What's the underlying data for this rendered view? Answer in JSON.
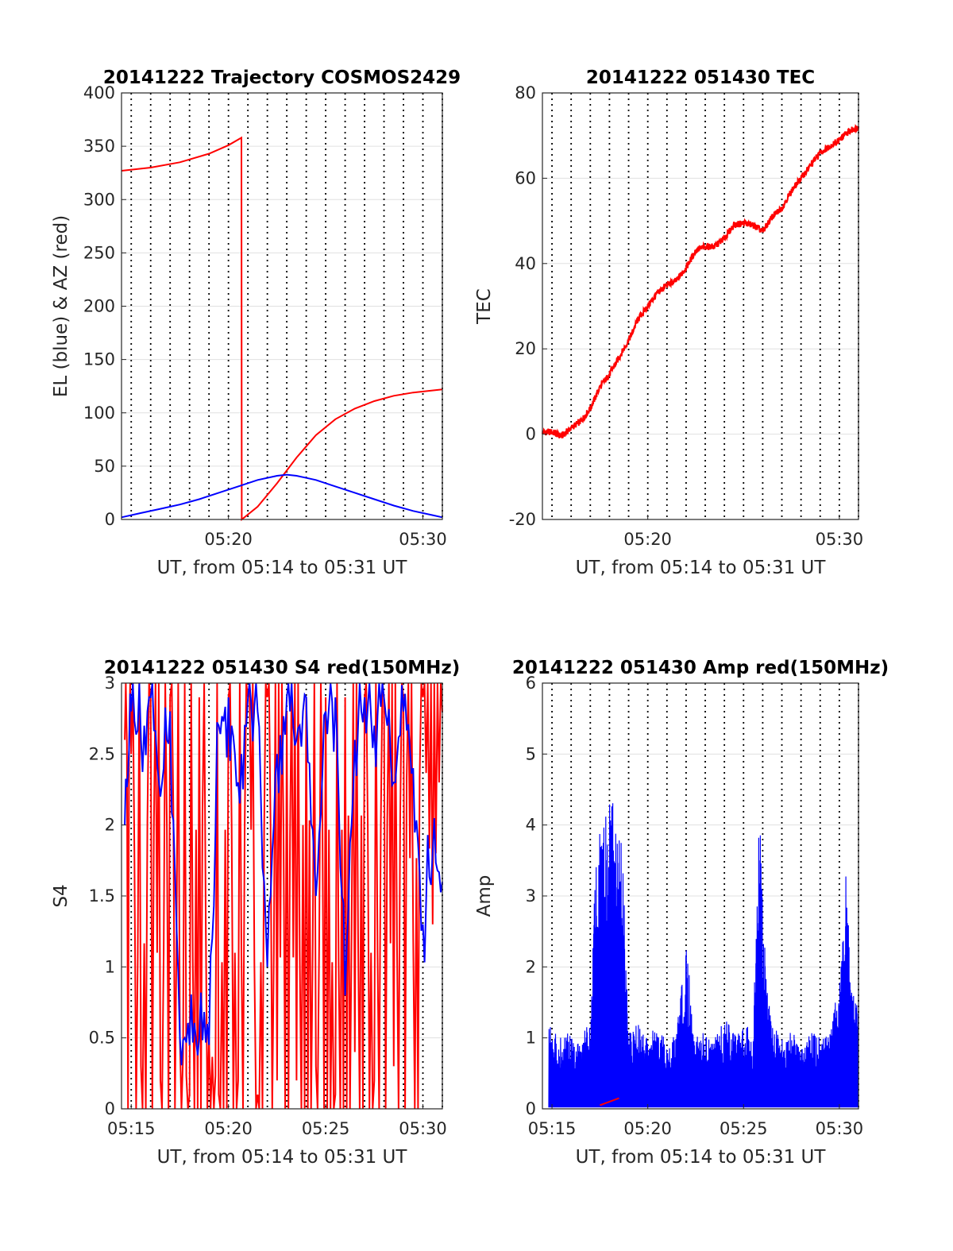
{
  "chart_data": [
    {
      "id": "trajectory",
      "type": "line",
      "title": "20141222 Trajectory COSMOS2429",
      "xlabel": "UT, from 05:14 to 05:31 UT",
      "ylabel": "EL (blue) & AZ (red)",
      "xlim": [
        "05:14:30",
        "05:31:00"
      ],
      "ylim": [
        0,
        400
      ],
      "yticks": [
        0,
        50,
        100,
        150,
        200,
        250,
        300,
        350,
        400
      ],
      "xticks": [
        "05:20",
        "05:30"
      ],
      "grid": "x dotted per minute, y solid",
      "series": [
        {
          "color": "#ff0000",
          "x": [
            "05:14:30",
            "05:16:00",
            "05:17:30",
            "05:19:00",
            "05:20:00",
            "05:20:40",
            "05:20:41",
            "05:21:30",
            "05:22:30",
            "05:23:30",
            "05:24:30",
            "05:25:30",
            "05:26:30",
            "05:27:30",
            "05:28:30",
            "05:29:30",
            "05:31:00"
          ],
          "y": [
            327,
            330,
            335,
            343,
            351,
            358,
            0,
            12,
            34,
            58,
            79,
            94,
            104,
            111,
            116,
            119,
            122
          ]
        },
        {
          "color": "#0000ff",
          "x": [
            "05:14:30",
            "05:15:30",
            "05:16:30",
            "05:17:30",
            "05:18:30",
            "05:19:30",
            "05:20:30",
            "05:21:30",
            "05:22:30",
            "05:23:00",
            "05:23:30",
            "05:24:30",
            "05:25:30",
            "05:26:30",
            "05:27:30",
            "05:28:30",
            "05:29:30",
            "05:30:30",
            "05:31:00"
          ],
          "y": [
            2,
            6,
            10,
            14,
            19,
            25,
            31,
            37,
            41,
            42,
            41,
            37,
            31,
            25,
            19,
            13,
            8,
            4,
            2
          ]
        }
      ]
    },
    {
      "id": "tec",
      "type": "line",
      "title": "20141222 051430 TEC",
      "xlabel": "UT, from 05:14 to 05:31 UT",
      "ylabel": "TEC",
      "xlim": [
        "05:14:30",
        "05:31:00"
      ],
      "ylim": [
        -20,
        80
      ],
      "yticks": [
        -20,
        0,
        20,
        40,
        60,
        80
      ],
      "xticks": [
        "05:20",
        "05:30"
      ],
      "series": [
        {
          "color": "#ff0000",
          "x": [
            "05:14:30",
            "05:15:00",
            "05:15:30",
            "05:16:00",
            "05:16:30",
            "05:17:00",
            "05:17:30",
            "05:18:00",
            "05:18:30",
            "05:19:00",
            "05:19:30",
            "05:20:00",
            "05:20:30",
            "05:21:00",
            "05:21:30",
            "05:22:00",
            "05:22:30",
            "05:23:00",
            "05:23:30",
            "05:24:00",
            "05:24:30",
            "05:25:00",
            "05:25:30",
            "05:26:00",
            "05:26:30",
            "05:27:00",
            "05:27:30",
            "05:28:00",
            "05:28:30",
            "05:29:00",
            "05:29:30",
            "05:30:00",
            "05:30:30",
            "05:31:00"
          ],
          "y": [
            0.5,
            0.5,
            -0.5,
            1.5,
            3,
            6,
            11,
            14,
            18,
            22,
            27,
            30,
            33,
            35,
            36,
            39,
            43,
            44,
            44,
            46,
            49,
            49.5,
            49,
            47.5,
            51,
            53,
            57,
            60,
            63,
            66,
            67.5,
            69,
            71,
            72
          ]
        }
      ]
    },
    {
      "id": "s4",
      "type": "line",
      "title": "20141222 051430 S4 red(150MHz)",
      "xlabel": "UT, from 05:14 to 05:31 UT",
      "ylabel": "S4",
      "xlim": [
        "05:14:30",
        "05:31:00"
      ],
      "ylim": [
        0,
        3
      ],
      "yticks": [
        0,
        0.5,
        1,
        1.5,
        2,
        2.5,
        3
      ],
      "xticks": [
        "05:15",
        "05:20",
        "05:25",
        "05:30"
      ],
      "series": [
        {
          "color": "#ff0000",
          "x": [
            "05:14:40",
            "05:15:00",
            "05:15:30",
            "05:16:00",
            "05:16:30",
            "05:17:00",
            "05:17:30",
            "05:18:00",
            "05:18:30",
            "05:19:00",
            "05:19:30",
            "05:20:00",
            "05:20:30",
            "05:21:00",
            "05:21:30",
            "05:22:00",
            "05:22:30",
            "05:23:00",
            "05:23:30",
            "05:24:00",
            "05:24:30",
            "05:25:00",
            "05:25:30",
            "05:26:00",
            "05:26:30",
            "05:27:00",
            "05:27:30",
            "05:28:00",
            "05:28:30",
            "05:29:00",
            "05:29:30",
            "05:30:00",
            "05:30:30",
            "05:31:00"
          ],
          "y": [
            2.6,
            2.5,
            0.3,
            2.9,
            0.2,
            2.9,
            0.5,
            0.1,
            2.9,
            0.5,
            0.1,
            2.9,
            0.2,
            2.9,
            0.1,
            2.9,
            0.2,
            2.8,
            0.2,
            2.9,
            0.3,
            2.9,
            0.1,
            2.9,
            0.4,
            2.9,
            0.2,
            2.9,
            0.3,
            2.9,
            1.2,
            2.9,
            1.3,
            2.8
          ]
        },
        {
          "color": "#0000ff",
          "x": [
            "05:14:40",
            "05:15:00",
            "05:15:30",
            "05:16:00",
            "05:16:30",
            "05:17:00",
            "05:17:30",
            "05:18:00",
            "05:18:30",
            "05:19:00",
            "05:19:30",
            "05:20:00",
            "05:20:30",
            "05:21:00",
            "05:21:30",
            "05:22:00",
            "05:22:30",
            "05:23:00",
            "05:23:30",
            "05:24:00",
            "05:24:30",
            "05:25:00",
            "05:25:30",
            "05:26:00",
            "05:26:30",
            "05:27:00",
            "05:27:30",
            "05:28:00",
            "05:28:30",
            "05:29:00",
            "05:29:30",
            "05:30:00",
            "05:30:30",
            "05:31:00"
          ],
          "y": [
            2.0,
            2.8,
            2.6,
            2.9,
            2.2,
            2.8,
            0.5,
            0.45,
            0.5,
            0.45,
            2.7,
            2.9,
            2.3,
            2.9,
            2.8,
            1.0,
            2.5,
            2.9,
            2.6,
            2.9,
            1.5,
            2.8,
            2.9,
            0.8,
            2.6,
            2.9,
            2.7,
            2.9,
            2.3,
            2.8,
            2.4,
            1.3,
            1.8,
            1.6
          ]
        }
      ]
    },
    {
      "id": "amp",
      "type": "line",
      "title": "20141222 051430 Amp red(150MHz)",
      "xlabel": "UT, from 05:14 to 05:31 UT",
      "ylabel": "Amp",
      "xlim": [
        "05:14:30",
        "05:31:00"
      ],
      "ylim": [
        0,
        6
      ],
      "yticks": [
        0,
        1,
        2,
        3,
        4,
        5,
        6
      ],
      "xticks": [
        "05:15",
        "05:20",
        "05:25",
        "05:30"
      ],
      "series": [
        {
          "color": "#0000ff",
          "x": [
            "05:14:50",
            "05:15:30",
            "05:16:00",
            "05:16:30",
            "05:17:00",
            "05:17:20",
            "05:17:40",
            "05:18:00",
            "05:18:20",
            "05:18:40",
            "05:19:00",
            "05:19:30",
            "05:20:00",
            "05:20:30",
            "05:21:00",
            "05:21:30",
            "05:22:00",
            "05:22:30",
            "05:23:00",
            "05:23:30",
            "05:24:00",
            "05:24:30",
            "05:25:00",
            "05:25:30",
            "05:25:50",
            "05:26:10",
            "05:26:30",
            "05:27:00",
            "05:27:30",
            "05:28:00",
            "05:28:30",
            "05:29:00",
            "05:29:30",
            "05:30:00",
            "05:30:20",
            "05:30:40",
            "05:31:00"
          ],
          "y": [
            1.3,
            1.0,
            1.1,
            1.0,
            1.3,
            4.1,
            3.9,
            4.5,
            4.3,
            3.8,
            1.1,
            1.2,
            1.0,
            1.2,
            1.0,
            1.1,
            2.3,
            1.1,
            1.2,
            1.0,
            1.3,
            1.1,
            1.2,
            1.1,
            4.3,
            1.9,
            1.2,
            1.0,
            1.1,
            0.9,
            1.1,
            1.0,
            1.1,
            1.8,
            3.4,
            1.7,
            1.4
          ]
        },
        {
          "color": "#ff0000",
          "x": [
            "05:17:30",
            "05:18:00",
            "05:18:30"
          ],
          "y": [
            0.05,
            0.1,
            0.15
          ]
        }
      ]
    }
  ]
}
